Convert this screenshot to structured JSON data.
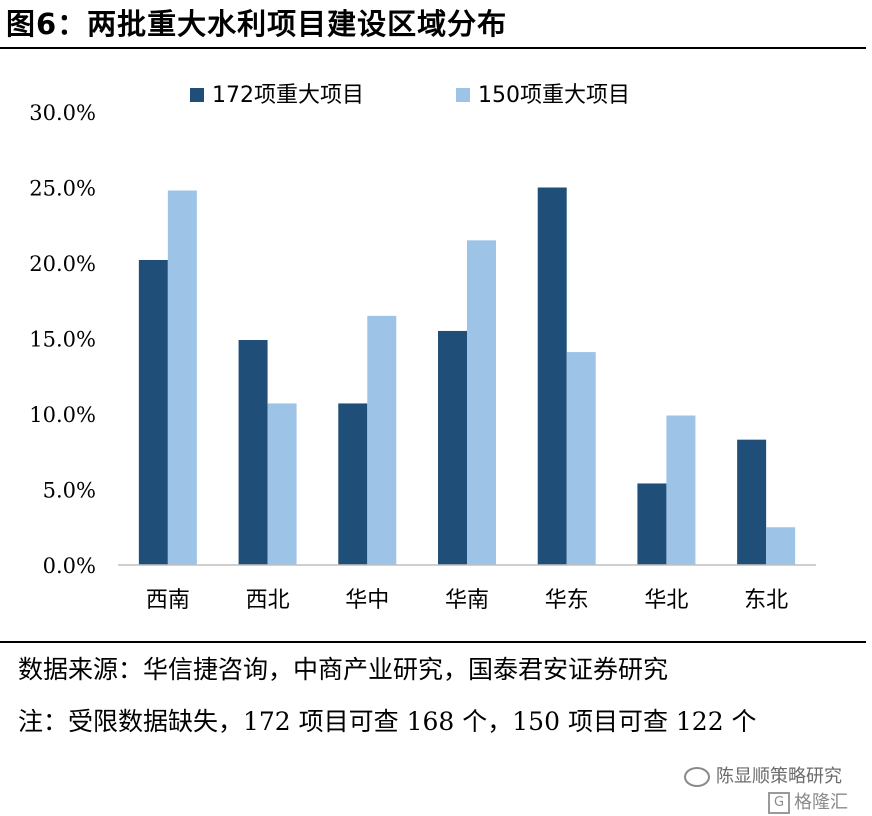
{
  "figure_title": "图6：两批重大水利项目建设区域分布",
  "source_text": "数据来源：华信捷咨询，中商产业研究，国泰君安证券研究",
  "note_text": "注：受限数据缺失，172 项目可查 168 个，150 项目可查 122 个",
  "watermark": {
    "wechat_label": "陈显顺策略研究",
    "brand_label": "格隆汇",
    "brand_letter": "G"
  },
  "colors": {
    "series_172": "#1f4e79",
    "series_150": "#9dc3e6",
    "axis": "#bfbfbf"
  },
  "chart_data": {
    "type": "bar",
    "categories": [
      "西南",
      "西北",
      "华中",
      "华南",
      "华东",
      "华北",
      "东北"
    ],
    "series": [
      {
        "name": "172项重大项目",
        "values": [
          20.2,
          14.9,
          10.7,
          15.5,
          25.0,
          5.4,
          8.3
        ]
      },
      {
        "name": "150项重大项目",
        "values": [
          24.8,
          10.7,
          16.5,
          21.5,
          14.1,
          9.9,
          2.5
        ]
      }
    ],
    "y_ticks": [
      "0.0%",
      "5.0%",
      "10.0%",
      "15.0%",
      "20.0%",
      "25.0%",
      "30.0%"
    ],
    "ylim": [
      0,
      30
    ],
    "unit": "%",
    "legend_position": "top",
    "grid": false
  }
}
